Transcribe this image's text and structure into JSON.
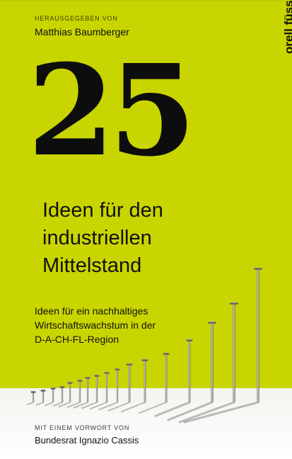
{
  "cover": {
    "editor_kicker": "HERAUSGEGEBEN VON",
    "editor_name": "Matthias Baumberger",
    "brand": "orell füssli",
    "number": "25",
    "title_lines": [
      "Ideen für den",
      "industriellen",
      "Mittelstand"
    ],
    "subtitle_lines": [
      "Ideen für ein nachhaltiges",
      "Wirtschaftswachstum in der",
      "D-A-CH-FL-Region"
    ],
    "foreword_kicker": "MIT EINEM VORWORT VON",
    "foreword_name": "Bundesrat Ignazio Cassis"
  },
  "colors": {
    "background": "#c9d500",
    "text": "#111111",
    "white_band": "#f3f3ef"
  },
  "illustration": {
    "subject": "row of nails increasing in height",
    "icon": "nail-icon"
  }
}
